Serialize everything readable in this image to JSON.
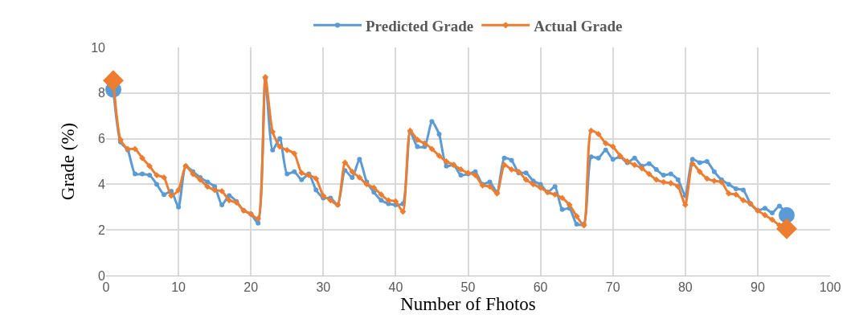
{
  "chart_data": {
    "type": "line",
    "xlabel": "Number of Fhotos",
    "ylabel": "Grade (%)",
    "x": [
      1,
      2,
      3,
      4,
      5,
      6,
      7,
      8,
      9,
      10,
      11,
      12,
      13,
      14,
      15,
      16,
      17,
      18,
      19,
      20,
      21,
      22,
      23,
      24,
      25,
      26,
      27,
      28,
      29,
      30,
      31,
      32,
      33,
      34,
      35,
      36,
      37,
      38,
      39,
      40,
      41,
      42,
      43,
      44,
      45,
      46,
      47,
      48,
      49,
      50,
      51,
      52,
      53,
      54,
      55,
      56,
      57,
      58,
      59,
      60,
      61,
      62,
      63,
      64,
      65,
      66,
      67,
      68,
      69,
      70,
      71,
      72,
      73,
      74,
      75,
      76,
      77,
      78,
      79,
      80,
      81,
      82,
      83,
      84,
      85,
      86,
      87,
      88,
      89,
      90,
      91,
      92,
      93,
      94
    ],
    "series": [
      {
        "name": "Predicted Grade",
        "color": "#5b9bd5",
        "marker": "circle",
        "values": [
          8.15,
          5.85,
          5.5,
          4.45,
          4.45,
          4.4,
          4.0,
          3.55,
          3.7,
          3.0,
          4.8,
          4.55,
          4.3,
          4.1,
          3.9,
          3.1,
          3.5,
          3.25,
          2.85,
          2.7,
          2.3,
          8.65,
          5.5,
          6.0,
          4.45,
          4.55,
          4.2,
          4.45,
          3.75,
          3.4,
          3.4,
          3.1,
          4.6,
          4.3,
          5.1,
          4.1,
          3.65,
          3.3,
          3.15,
          3.1,
          3.15,
          6.3,
          5.65,
          5.65,
          6.75,
          6.2,
          4.8,
          4.85,
          4.4,
          4.45,
          4.55,
          4.0,
          4.1,
          3.65,
          5.15,
          5.05,
          4.5,
          4.5,
          4.15,
          4.0,
          3.65,
          3.9,
          2.9,
          2.95,
          2.25,
          2.25,
          5.2,
          5.15,
          5.5,
          5.1,
          5.2,
          4.95,
          5.15,
          4.8,
          4.9,
          4.65,
          4.4,
          4.45,
          4.2,
          3.5,
          5.1,
          4.95,
          5.0,
          4.55,
          4.2,
          4.0,
          3.8,
          3.75,
          3.15,
          2.85,
          2.95,
          2.75,
          3.05,
          2.65
        ]
      },
      {
        "name": "Actual Grade",
        "color": "#ed7d31",
        "marker": "diamond",
        "values": [
          8.55,
          5.95,
          5.55,
          5.55,
          5.15,
          4.8,
          4.4,
          4.3,
          3.5,
          3.75,
          4.8,
          4.45,
          4.2,
          3.9,
          3.75,
          3.7,
          3.3,
          3.2,
          2.85,
          2.7,
          2.5,
          8.7,
          6.3,
          5.65,
          5.5,
          5.35,
          4.5,
          4.4,
          4.25,
          3.5,
          3.3,
          3.1,
          4.95,
          4.55,
          4.3,
          4.0,
          3.85,
          3.55,
          3.3,
          3.25,
          2.8,
          6.35,
          5.95,
          5.8,
          5.55,
          5.25,
          5.0,
          4.85,
          4.65,
          4.5,
          4.4,
          3.95,
          3.9,
          3.6,
          4.85,
          4.65,
          4.55,
          4.2,
          4.0,
          3.85,
          3.65,
          3.55,
          3.4,
          3.1,
          2.6,
          2.2,
          6.35,
          6.2,
          5.8,
          5.65,
          5.25,
          5.0,
          4.85,
          4.7,
          4.45,
          4.2,
          4.1,
          4.05,
          3.9,
          3.1,
          4.9,
          4.55,
          4.25,
          4.15,
          4.1,
          3.6,
          3.55,
          3.3,
          3.15,
          2.85,
          2.65,
          2.45,
          2.2,
          2.05
        ]
      }
    ],
    "xlim": [
      0,
      100
    ],
    "xticks": [
      0,
      10,
      20,
      30,
      40,
      50,
      60,
      70,
      80,
      90,
      100
    ],
    "ylim": [
      0,
      10
    ],
    "yticks": [
      0,
      2,
      4,
      6,
      8,
      10
    ],
    "grid": true,
    "legend": "top",
    "line_style": "solid"
  }
}
